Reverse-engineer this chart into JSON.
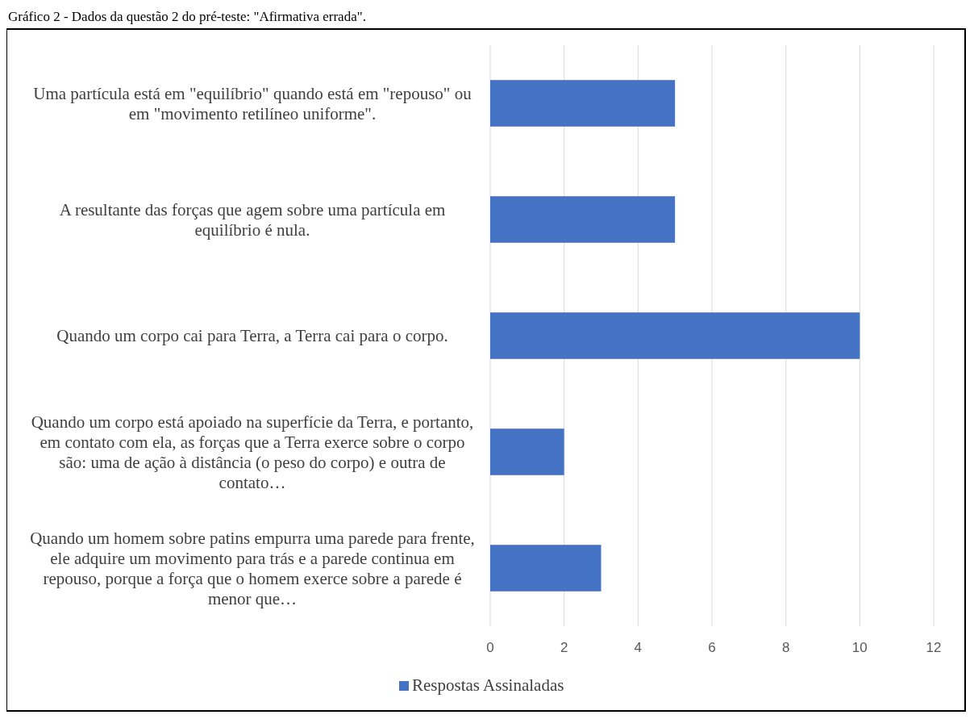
{
  "chart_data": {
    "type": "bar",
    "orientation": "horizontal",
    "title": "Gráfico 2 - Dados da questão 2 do pré-teste: \"Afirmativa errada\".",
    "categories": [
      "Uma partícula está em \"equilíbrio\" quando está em \"repouso\" ou em \"movimento retilíneo uniforme\".",
      "A resultante das forças que agem sobre uma partícula em equilíbrio é nula.",
      "Quando um corpo cai para Terra, a Terra cai para o corpo.",
      "Quando um corpo está apoiado na superfície da Terra, e portanto, em contato com ela, as forças que a Terra exerce sobre o corpo são: uma de ação à distância (o peso do corpo) e outra de contato…",
      "Quando um homem sobre patins empurra uma parede para frente, ele adquire um movimento para trás e a parede continua em repouso, porque a força que o homem exerce sobre a parede é menor que…"
    ],
    "series": [
      {
        "name": "Respostas Assinaladas",
        "color": "#4472c4",
        "values": [
          5,
          5,
          10,
          2,
          3
        ]
      }
    ],
    "xlim": [
      0,
      12
    ],
    "xticks": [
      0,
      2,
      4,
      6,
      8,
      10,
      12
    ],
    "grid": "x",
    "legend": "bottom"
  }
}
